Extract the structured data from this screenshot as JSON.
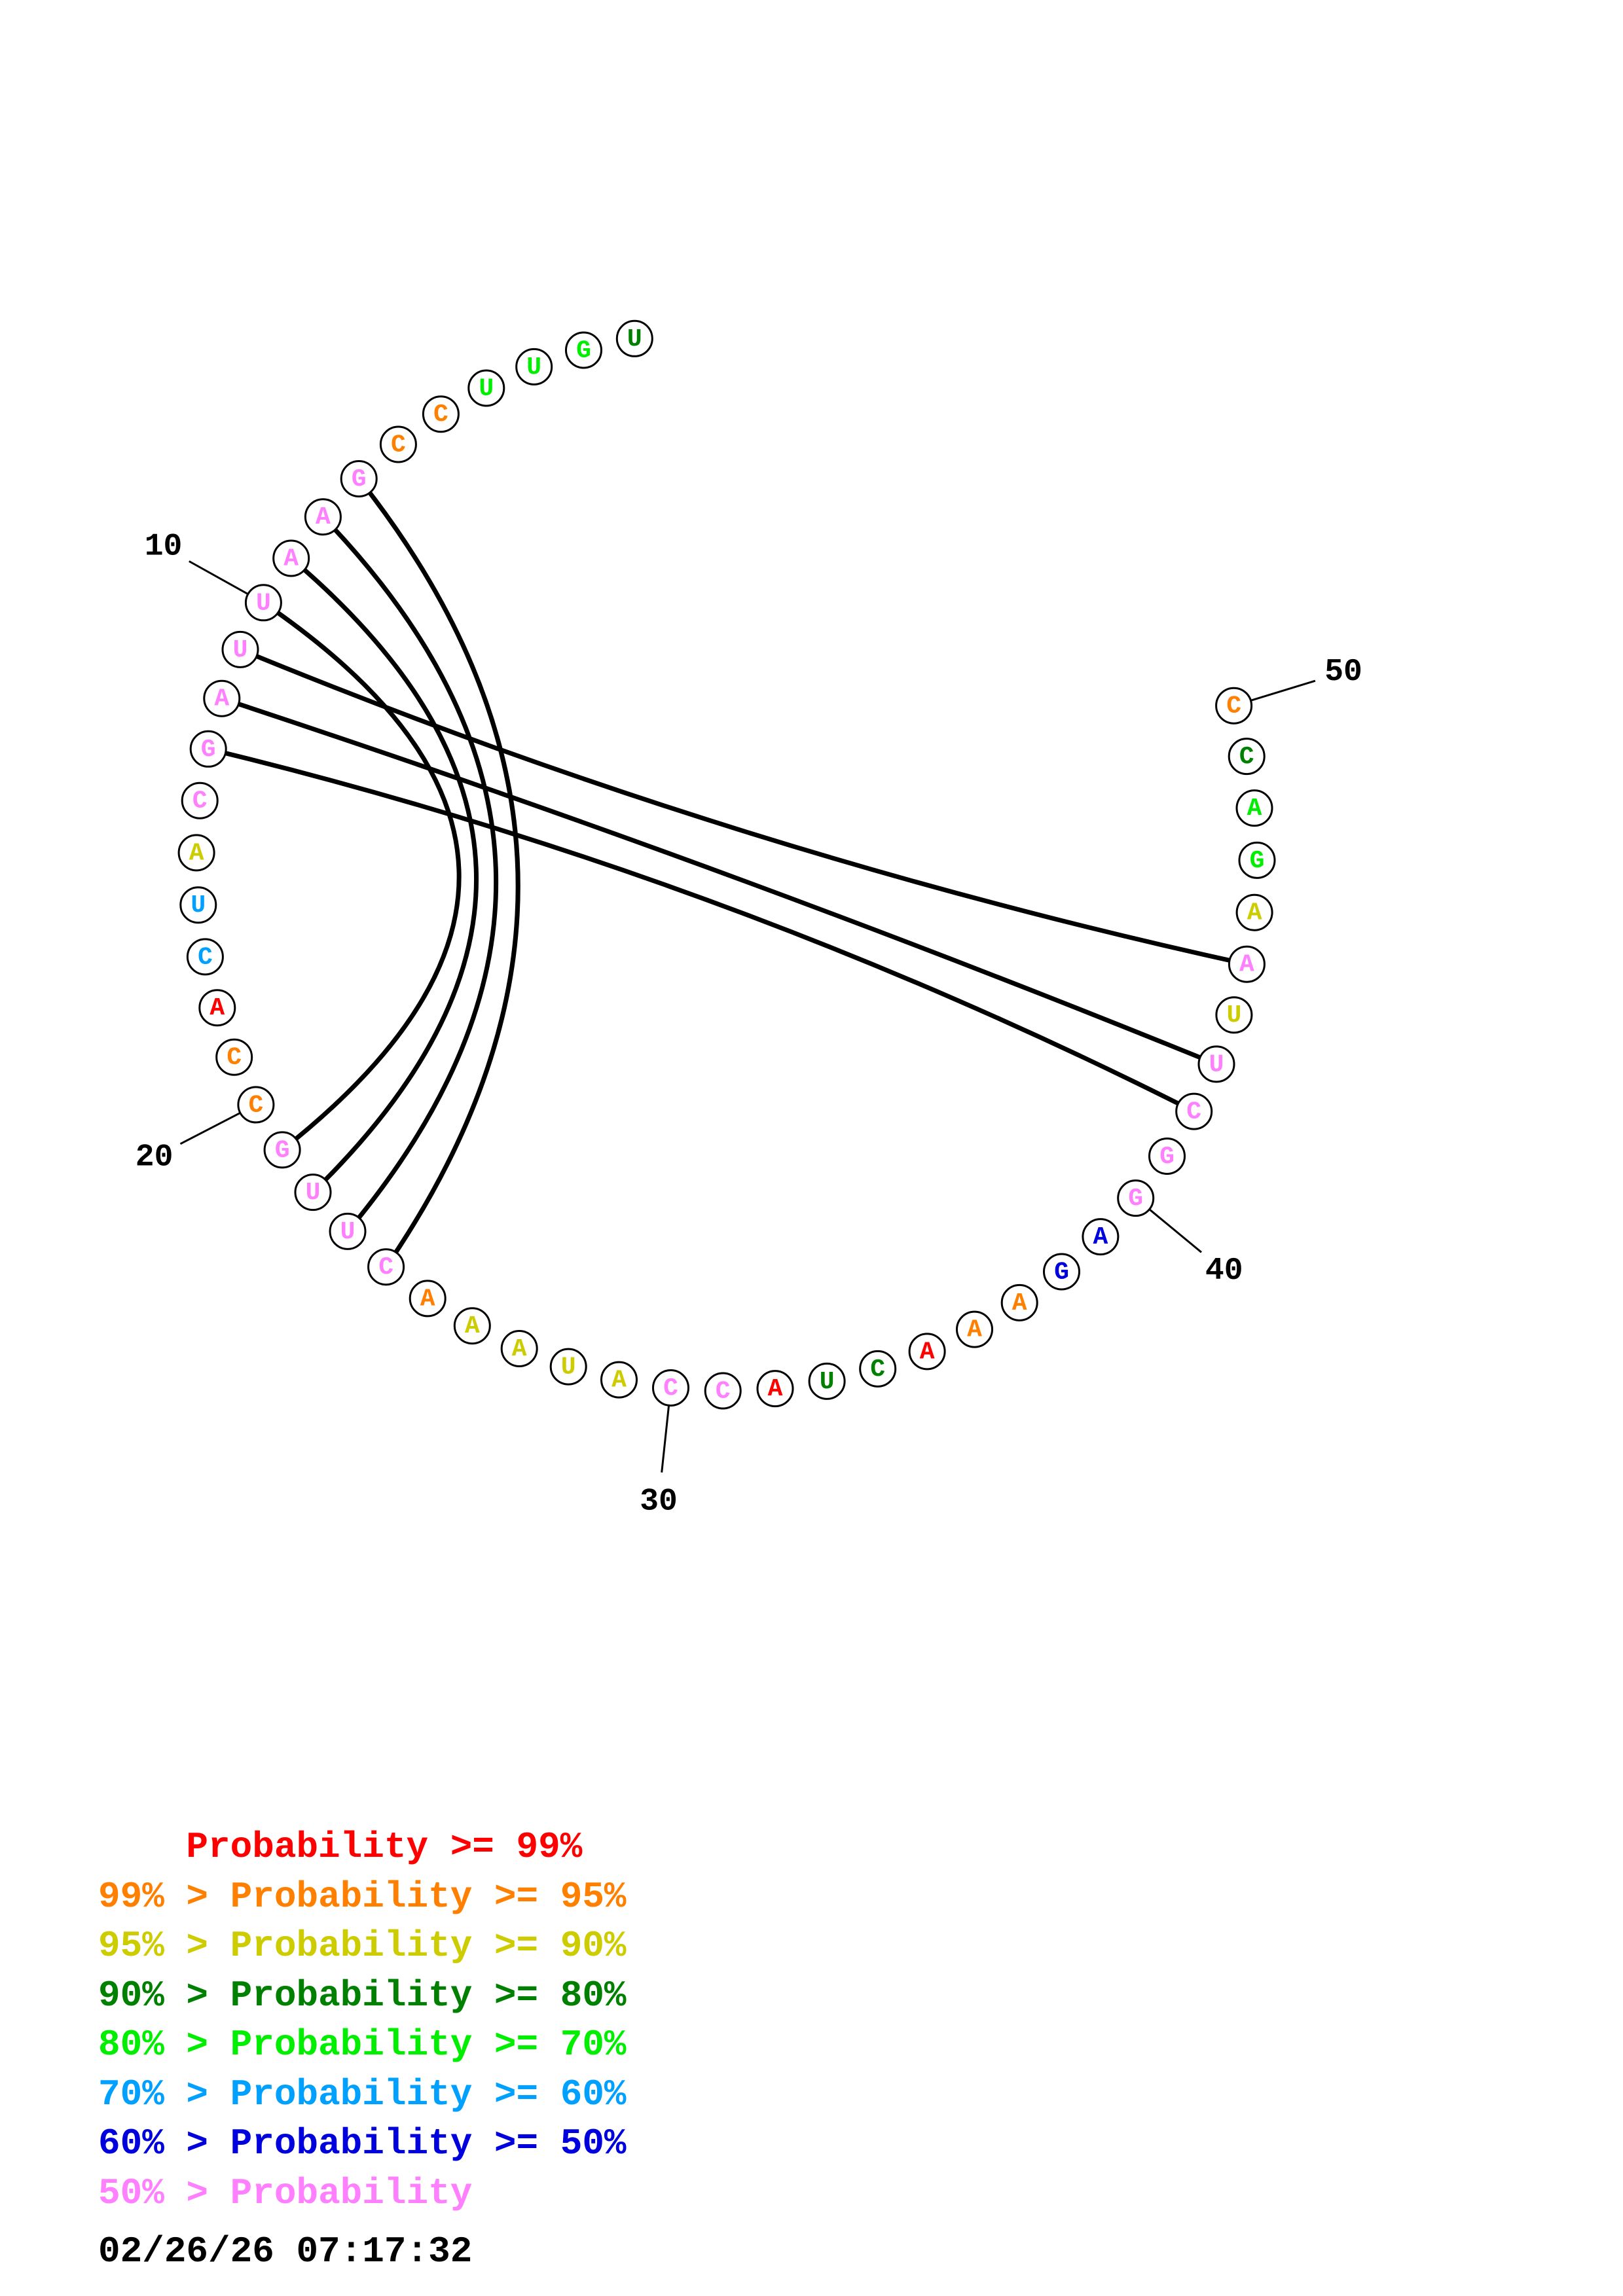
{
  "sequence": [
    {
      "n": 1,
      "base": "U",
      "color": "#008000"
    },
    {
      "n": 2,
      "base": "G",
      "color": "#00ee00"
    },
    {
      "n": 3,
      "base": "U",
      "color": "#00ee00"
    },
    {
      "n": 4,
      "base": "U",
      "color": "#00ee00"
    },
    {
      "n": 5,
      "base": "C",
      "color": "#ff8000"
    },
    {
      "n": 6,
      "base": "C",
      "color": "#ff8000"
    },
    {
      "n": 7,
      "base": "G",
      "color": "#ff80ff"
    },
    {
      "n": 8,
      "base": "A",
      "color": "#ff80ff"
    },
    {
      "n": 9,
      "base": "A",
      "color": "#ff80ff"
    },
    {
      "n": 10,
      "base": "U",
      "color": "#ff80ff"
    },
    {
      "n": 11,
      "base": "U",
      "color": "#ff80ff"
    },
    {
      "n": 12,
      "base": "A",
      "color": "#ff80ff"
    },
    {
      "n": 13,
      "base": "G",
      "color": "#ff80ff"
    },
    {
      "n": 14,
      "base": "C",
      "color": "#ff80ff"
    },
    {
      "n": 15,
      "base": "A",
      "color": "#cccc00"
    },
    {
      "n": 16,
      "base": "U",
      "color": "#00a0ff"
    },
    {
      "n": 17,
      "base": "C",
      "color": "#00a0ff"
    },
    {
      "n": 18,
      "base": "A",
      "color": "#ff0000"
    },
    {
      "n": 19,
      "base": "C",
      "color": "#ff8000"
    },
    {
      "n": 20,
      "base": "C",
      "color": "#ff8000"
    },
    {
      "n": 21,
      "base": "G",
      "color": "#ff80ff"
    },
    {
      "n": 22,
      "base": "U",
      "color": "#ff80ff"
    },
    {
      "n": 23,
      "base": "U",
      "color": "#ff80ff"
    },
    {
      "n": 24,
      "base": "C",
      "color": "#ff80ff"
    },
    {
      "n": 25,
      "base": "A",
      "color": "#ff8000"
    },
    {
      "n": 26,
      "base": "A",
      "color": "#cccc00"
    },
    {
      "n": 27,
      "base": "A",
      "color": "#cccc00"
    },
    {
      "n": 28,
      "base": "U",
      "color": "#cccc00"
    },
    {
      "n": 29,
      "base": "A",
      "color": "#cccc00"
    },
    {
      "n": 30,
      "base": "C",
      "color": "#ff80ff"
    },
    {
      "n": 31,
      "base": "C",
      "color": "#ff80ff"
    },
    {
      "n": 32,
      "base": "A",
      "color": "#ff0000"
    },
    {
      "n": 33,
      "base": "U",
      "color": "#008000"
    },
    {
      "n": 34,
      "base": "C",
      "color": "#008000"
    },
    {
      "n": 35,
      "base": "A",
      "color": "#ff0000"
    },
    {
      "n": 36,
      "base": "A",
      "color": "#ff8000"
    },
    {
      "n": 37,
      "base": "A",
      "color": "#ff8000"
    },
    {
      "n": 38,
      "base": "G",
      "color": "#0000dd"
    },
    {
      "n": 39,
      "base": "A",
      "color": "#0000dd"
    },
    {
      "n": 40,
      "base": "G",
      "color": "#ff80ff"
    },
    {
      "n": 41,
      "base": "G",
      "color": "#ff80ff"
    },
    {
      "n": 42,
      "base": "C",
      "color": "#ff80ff"
    },
    {
      "n": 43,
      "base": "U",
      "color": "#ff80ff"
    },
    {
      "n": 44,
      "base": "U",
      "color": "#cccc00"
    },
    {
      "n": 45,
      "base": "A",
      "color": "#ff80ff"
    },
    {
      "n": 46,
      "base": "A",
      "color": "#cccc00"
    },
    {
      "n": 47,
      "base": "G",
      "color": "#00ee00"
    },
    {
      "n": 48,
      "base": "A",
      "color": "#00ee00"
    },
    {
      "n": 49,
      "base": "C",
      "color": "#008000"
    },
    {
      "n": 50,
      "base": "C",
      "color": "#ff8000"
    }
  ],
  "pairs": [
    [
      7,
      24
    ],
    [
      8,
      23
    ],
    [
      9,
      22
    ],
    [
      10,
      21
    ],
    [
      11,
      45
    ],
    [
      12,
      43
    ],
    [
      13,
      42
    ]
  ],
  "index_labels": [
    {
      "n": 10,
      "text": "10"
    },
    {
      "n": 20,
      "text": "20"
    },
    {
      "n": 30,
      "text": "30"
    },
    {
      "n": 40,
      "text": "40"
    },
    {
      "n": 50,
      "text": "50"
    }
  ],
  "legend": [
    {
      "prefix": "    ",
      "text": "Probability >= 99%",
      "color": "#ff0000"
    },
    {
      "prefix": "99% > ",
      "text": "Probability >= 95%",
      "color": "#ff8000"
    },
    {
      "prefix": "95% > ",
      "text": "Probability >= 90%",
      "color": "#cccc00"
    },
    {
      "prefix": "90% > ",
      "text": "Probability >= 80%",
      "color": "#008000"
    },
    {
      "prefix": "80% > ",
      "text": "Probability >= 70%",
      "color": "#00ee00"
    },
    {
      "prefix": "70% > ",
      "text": "Probability >= 60%",
      "color": "#00a0ff"
    },
    {
      "prefix": "60% > ",
      "text": "Probability >= 50%",
      "color": "#0000dd"
    },
    {
      "prefix": "50% > ",
      "text": "Probability",
      "color": "#ff80ff"
    }
  ],
  "timestamp": "02/26/26 07:17:32"
}
